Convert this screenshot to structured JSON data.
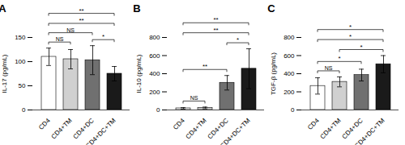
{
  "chart_data": [
    {
      "type": "bar",
      "title": "A",
      "ylabel": "IL-17 (pg/mL)",
      "categories": [
        "CD4",
        "CD4+TM",
        "CD4+DC",
        "CD4+DC+TM"
      ],
      "values": [
        110,
        105,
        103,
        75
      ],
      "errors": [
        18,
        20,
        30,
        15
      ],
      "colors": [
        "white",
        "#d0d0d0",
        "#707070",
        "#1a1a1a"
      ],
      "ylim": [
        0,
        150
      ],
      "yticks": [
        0,
        50,
        100,
        150
      ],
      "annotations": [
        {
          "x1": "CD4",
          "x2": "CD4+TM",
          "label": "NS"
        },
        {
          "x1": "CD4",
          "x2": "CD4+DC",
          "label": "NS"
        },
        {
          "x1": "CD4+DC",
          "x2": "CD4+DC+TM",
          "label": "*"
        },
        {
          "x1": "CD4",
          "x2": "CD4+DC+TM",
          "label": "**"
        },
        {
          "x1": "CD4",
          "x2": "CD4+DC+TM",
          "label": "**"
        }
      ]
    },
    {
      "type": "bar",
      "title": "B",
      "ylabel": "IL-10 (pg/mL)",
      "categories": [
        "CD4",
        "CD4+TM",
        "CD4+DC",
        "CD4+DC+TM"
      ],
      "values": [
        18,
        22,
        300,
        455
      ],
      "errors": [
        8,
        10,
        80,
        220
      ],
      "colors": [
        "white",
        "#d0d0d0",
        "#707070",
        "#1a1a1a"
      ],
      "ylim": [
        0,
        800
      ],
      "yticks": [
        0,
        200,
        400,
        600,
        800
      ],
      "annotations": [
        {
          "x1": "CD4",
          "x2": "CD4+TM",
          "label": "NS"
        },
        {
          "x1": "CD4",
          "x2": "CD4+DC",
          "label": "**"
        },
        {
          "x1": "CD4+DC",
          "x2": "CD4+DC+TM",
          "label": "*"
        },
        {
          "x1": "CD4",
          "x2": "CD4+DC+TM",
          "label": "**"
        },
        {
          "x1": "CD4",
          "x2": "CD4+DC+TM",
          "label": "**"
        }
      ]
    },
    {
      "type": "bar",
      "title": "C",
      "ylabel": "TGF-β (pg/mL)",
      "categories": [
        "CD4",
        "CD4+TM",
        "CD4+DC",
        "CD4+DC+TM"
      ],
      "values": [
        265,
        310,
        385,
        505
      ],
      "errors": [
        90,
        55,
        65,
        95
      ],
      "colors": [
        "white",
        "#d0d0d0",
        "#707070",
        "#1a1a1a"
      ],
      "ylim": [
        0,
        800
      ],
      "yticks": [
        0,
        200,
        400,
        600,
        800
      ],
      "annotations": [
        {
          "x1": "CD4",
          "x2": "CD4+TM",
          "label": "NS"
        },
        {
          "x1": "CD4",
          "x2": "CD4+DC",
          "label": "*"
        },
        {
          "x1": "CD4+TM",
          "x2": "CD4+DC+TM",
          "label": "*"
        },
        {
          "x1": "CD4",
          "x2": "CD4+DC+TM",
          "label": "*"
        },
        {
          "x1": "CD4",
          "x2": "CD4+DC+TM",
          "label": "*"
        }
      ]
    }
  ]
}
